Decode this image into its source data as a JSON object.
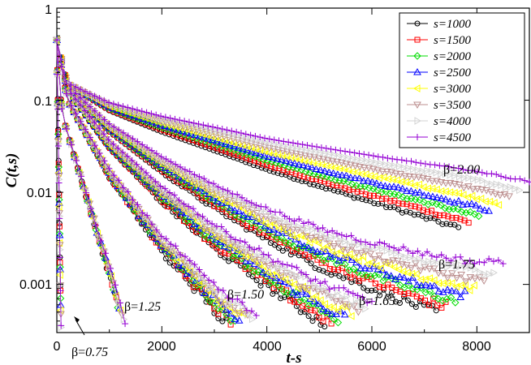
{
  "chart_data": {
    "type": "scatter",
    "xlabel": "t-s",
    "ylabel": "C(t,s)",
    "x_range": [
      0,
      9000
    ],
    "y_scale": "log",
    "y_range": [
      0.0003,
      1
    ],
    "x_ticks": [
      0,
      2000,
      4000,
      6000,
      8000
    ],
    "x_tick_labels": [
      "0",
      "2000",
      "4000",
      "6000",
      "8000"
    ],
    "y_ticks": [
      0.001,
      0.01,
      0.1,
      1
    ],
    "y_tick_labels": [
      "0.001",
      "0.01",
      "0.1",
      "1"
    ],
    "legend_position": "top-right",
    "grid": false,
    "series": [
      {
        "name": "s=1000",
        "color": "#000000",
        "marker": "circle"
      },
      {
        "name": "s=1500",
        "color": "#ff0000",
        "marker": "square"
      },
      {
        "name": "s=2000",
        "color": "#00dd00",
        "marker": "diamond"
      },
      {
        "name": "s=2500",
        "color": "#0000ff",
        "marker": "triangle-up"
      },
      {
        "name": "s=3000",
        "color": "#ffff00",
        "marker": "triangle-left"
      },
      {
        "name": "s=3500",
        "color": "#bc8f8f",
        "marker": "triangle-down"
      },
      {
        "name": "s=4000",
        "color": "#d3d3d3",
        "marker": "triangle-right"
      },
      {
        "name": "s=4500",
        "color": "#9400d3",
        "marker": "plus"
      }
    ],
    "curves": [
      {
        "beta": "2.00",
        "y0": 0.45,
        "x_end": 9000,
        "points": [
          [
            200,
            0.15
          ],
          [
            1000,
            0.085
          ],
          [
            2000,
            0.055
          ],
          [
            3000,
            0.038
          ],
          [
            4000,
            0.026
          ],
          [
            5000,
            0.019
          ],
          [
            6000,
            0.014
          ],
          [
            7000,
            0.0105
          ],
          [
            8000,
            0.0078
          ],
          [
            9000,
            0.0055
          ]
        ]
      },
      {
        "beta": "1.75",
        "y0": 0.45,
        "x_end": 8500,
        "points": [
          [
            200,
            0.14
          ],
          [
            1000,
            0.05
          ],
          [
            2000,
            0.02
          ],
          [
            3000,
            0.009
          ],
          [
            4000,
            0.0045
          ],
          [
            5000,
            0.0025
          ],
          [
            6000,
            0.0016
          ],
          [
            7000,
            0.0011
          ],
          [
            8000,
            0.0008
          ]
        ]
      },
      {
        "beta": "1.65",
        "y0": 0.45,
        "x_end": 6000,
        "points": [
          [
            200,
            0.13
          ],
          [
            1000,
            0.033
          ],
          [
            2000,
            0.0095
          ],
          [
            3000,
            0.0033
          ],
          [
            4000,
            0.0014
          ],
          [
            5000,
            0.00065
          ],
          [
            6000,
            0.00035
          ]
        ]
      },
      {
        "beta": "1.50",
        "y0": 0.45,
        "x_end": 3800,
        "points": [
          [
            200,
            0.1
          ],
          [
            1000,
            0.016
          ],
          [
            2000,
            0.0028
          ],
          [
            3000,
            0.0007
          ],
          [
            3800,
            0.00032
          ]
        ]
      },
      {
        "beta": "1.25",
        "y0": 0.45,
        "x_end": 1300,
        "points": [
          [
            100,
            0.07
          ],
          [
            500,
            0.012
          ],
          [
            1000,
            0.0014
          ],
          [
            1300,
            0.00033
          ]
        ]
      },
      {
        "beta": "0.75",
        "y0": 0.45,
        "x_end": 80,
        "points": [
          [
            20,
            0.08
          ],
          [
            50,
            0.005
          ],
          [
            80,
            0.00033
          ]
        ]
      }
    ],
    "annotations": [
      {
        "prefix": "β=",
        "value": "2.00"
      },
      {
        "prefix": "β=",
        "value": "1.75"
      },
      {
        "prefix": "β=",
        "value": "1.65"
      },
      {
        "prefix": "β=",
        "value": "1.50"
      },
      {
        "prefix": "β=",
        "value": "1.25"
      },
      {
        "prefix": "β=",
        "value": "0.75"
      }
    ]
  }
}
